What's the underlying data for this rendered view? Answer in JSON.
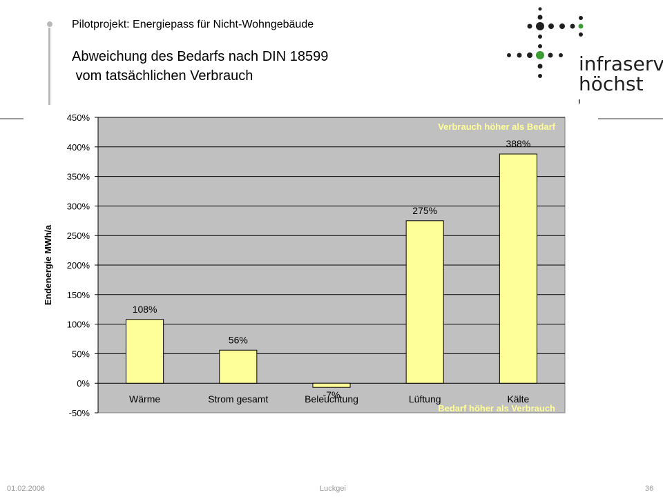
{
  "header": {
    "project": "Pilotprojekt: Energiepass für Nicht-Wohngebäude",
    "title_line1": "Abweichung des Bedarfs nach DIN 18599",
    "title_line2": " vom tatsächlichen Verbrauch"
  },
  "logo": {
    "word1": "infraserv",
    "word2": "höchst",
    "dot_color": "#1f1f1f",
    "accent_color": "#3d9b35"
  },
  "footer": {
    "date": "01.02.2006",
    "author": "Luckgei",
    "page": "36"
  },
  "chart_data": {
    "type": "bar",
    "categories": [
      "Wärme",
      "Strom gesamt",
      "Beleuchtung",
      "Lüftung",
      "Kälte"
    ],
    "values": [
      108,
      56,
      -7,
      275,
      388
    ],
    "data_labels": [
      "108%",
      "56%",
      "-7%",
      "275%",
      "388%"
    ],
    "ylabel": "Endenergie MWh/a",
    "ylim": [
      -50,
      450
    ],
    "yticks": [
      -50,
      0,
      50,
      100,
      150,
      200,
      250,
      300,
      350,
      400,
      450
    ],
    "ytick_labels": [
      "-50%",
      "0%",
      "50%",
      "100%",
      "150%",
      "200%",
      "250%",
      "300%",
      "350%",
      "400%",
      "450%"
    ],
    "grid": true,
    "annotations": {
      "top": "Verbrauch höher als Bedarf",
      "bottom": "Bedarf höher als Verbrauch"
    },
    "colors": {
      "outer_bg": "#ffffff",
      "plot_bg": "#c0c0c0",
      "bar_fill": "#ffff99",
      "bar_stroke": "#000000",
      "grid": "#000000",
      "annotation": "#ffff99"
    }
  }
}
